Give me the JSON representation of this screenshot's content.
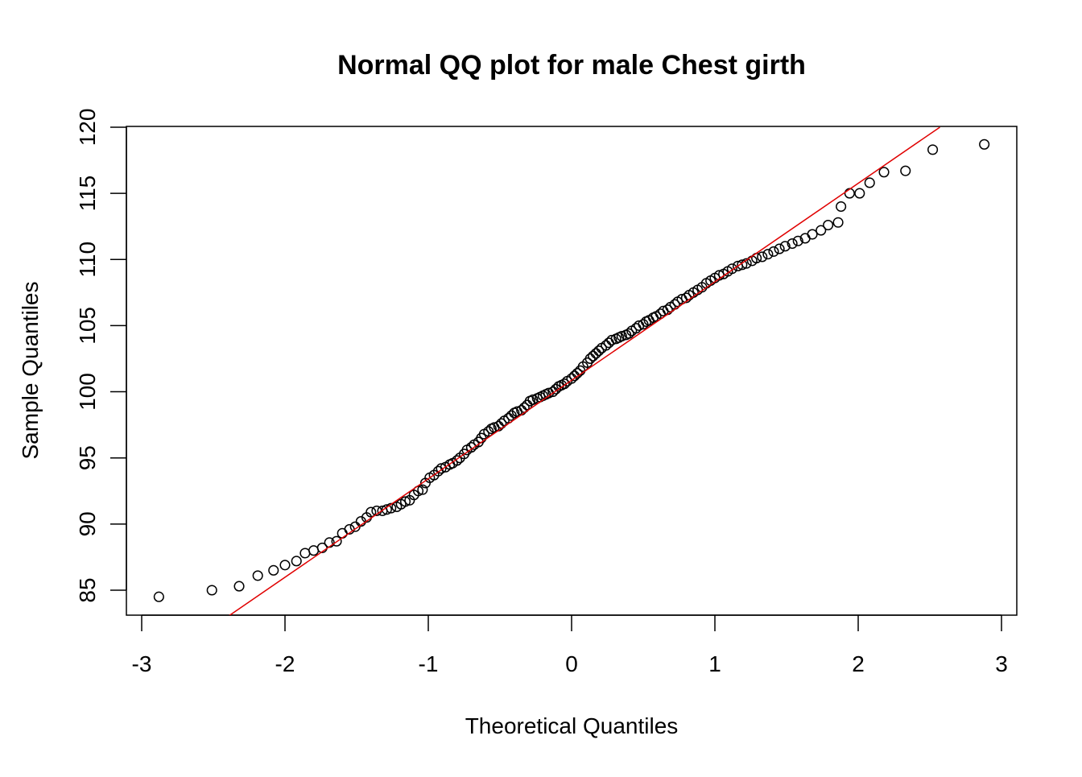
{
  "chart_data": {
    "type": "scatter",
    "title": "Normal QQ plot for male Chest girth",
    "xlabel": "Theoretical Quantiles",
    "ylabel": "Sample Quantiles",
    "xlim": [
      -3,
      3
    ],
    "ylim": [
      83,
      120
    ],
    "x_ticks": [
      "-3",
      "-2",
      "-1",
      "0",
      "1",
      "2",
      "3"
    ],
    "y_ticks": [
      "85",
      "90",
      "95",
      "100",
      "105",
      "110",
      "115",
      "120"
    ],
    "grid": false,
    "marker": "open-circle",
    "colors": {
      "points": "#000000",
      "reference_line": "#e00000"
    },
    "reference_line": {
      "points": [
        [
          -2.4,
          83.0
        ],
        [
          2.57,
          120.0
        ]
      ]
    },
    "points": [
      [
        -2.88,
        84.5
      ],
      [
        -2.51,
        85.0
      ],
      [
        -2.32,
        85.3
      ],
      [
        -2.19,
        86.1
      ],
      [
        -2.08,
        86.5
      ],
      [
        -2.0,
        86.9
      ],
      [
        -1.92,
        87.2
      ],
      [
        -1.86,
        87.8
      ],
      [
        -1.8,
        88.0
      ],
      [
        -1.74,
        88.2
      ],
      [
        -1.69,
        88.6
      ],
      [
        -1.64,
        88.7
      ],
      [
        -1.6,
        89.3
      ],
      [
        -1.55,
        89.6
      ],
      [
        -1.51,
        89.8
      ],
      [
        -1.47,
        90.2
      ],
      [
        -1.43,
        90.5
      ],
      [
        -1.4,
        90.9
      ],
      [
        -1.36,
        91.0
      ],
      [
        -1.32,
        91.0
      ],
      [
        -1.29,
        91.1
      ],
      [
        -1.26,
        91.2
      ],
      [
        -1.22,
        91.3
      ],
      [
        -1.19,
        91.5
      ],
      [
        -1.16,
        91.7
      ],
      [
        -1.13,
        91.8
      ],
      [
        -1.1,
        92.2
      ],
      [
        -1.07,
        92.5
      ],
      [
        -1.04,
        92.6
      ],
      [
        -1.02,
        93.1
      ],
      [
        -0.99,
        93.5
      ],
      [
        -0.96,
        93.7
      ],
      [
        -0.93,
        94.0
      ],
      [
        -0.91,
        94.2
      ],
      [
        -0.88,
        94.3
      ],
      [
        -0.85,
        94.5
      ],
      [
        -0.83,
        94.6
      ],
      [
        -0.8,
        94.8
      ],
      [
        -0.78,
        95.0
      ],
      [
        -0.75,
        95.3
      ],
      [
        -0.73,
        95.6
      ],
      [
        -0.7,
        95.8
      ],
      [
        -0.68,
        96.0
      ],
      [
        -0.65,
        96.2
      ],
      [
        -0.63,
        96.5
      ],
      [
        -0.61,
        96.8
      ],
      [
        -0.58,
        97.0
      ],
      [
        -0.56,
        97.2
      ],
      [
        -0.54,
        97.3
      ],
      [
        -0.51,
        97.4
      ],
      [
        -0.49,
        97.6
      ],
      [
        -0.47,
        97.8
      ],
      [
        -0.44,
        98.0
      ],
      [
        -0.42,
        98.2
      ],
      [
        -0.4,
        98.4
      ],
      [
        -0.38,
        98.5
      ],
      [
        -0.35,
        98.6
      ],
      [
        -0.33,
        98.8
      ],
      [
        -0.31,
        99.0
      ],
      [
        -0.29,
        99.3
      ],
      [
        -0.27,
        99.4
      ],
      [
        -0.24,
        99.5
      ],
      [
        -0.22,
        99.6
      ],
      [
        -0.2,
        99.7
      ],
      [
        -0.18,
        99.8
      ],
      [
        -0.16,
        99.9
      ],
      [
        -0.13,
        100.0
      ],
      [
        -0.11,
        100.2
      ],
      [
        -0.09,
        100.4
      ],
      [
        -0.07,
        100.5
      ],
      [
        -0.05,
        100.6
      ],
      [
        -0.03,
        100.8
      ],
      [
        0.0,
        101.0
      ],
      [
        0.02,
        101.2
      ],
      [
        0.04,
        101.4
      ],
      [
        0.06,
        101.6
      ],
      [
        0.08,
        101.9
      ],
      [
        0.11,
        102.2
      ],
      [
        0.13,
        102.5
      ],
      [
        0.15,
        102.7
      ],
      [
        0.17,
        102.9
      ],
      [
        0.19,
        103.1
      ],
      [
        0.21,
        103.3
      ],
      [
        0.24,
        103.5
      ],
      [
        0.26,
        103.7
      ],
      [
        0.28,
        103.9
      ],
      [
        0.31,
        104.0
      ],
      [
        0.33,
        104.1
      ],
      [
        0.35,
        104.2
      ],
      [
        0.38,
        104.3
      ],
      [
        0.4,
        104.4
      ],
      [
        0.42,
        104.6
      ],
      [
        0.45,
        104.8
      ],
      [
        0.47,
        105.0
      ],
      [
        0.5,
        105.1
      ],
      [
        0.52,
        105.3
      ],
      [
        0.54,
        105.4
      ],
      [
        0.57,
        105.6
      ],
      [
        0.59,
        105.7
      ],
      [
        0.62,
        105.9
      ],
      [
        0.64,
        106.1
      ],
      [
        0.67,
        106.2
      ],
      [
        0.69,
        106.4
      ],
      [
        0.72,
        106.6
      ],
      [
        0.74,
        106.8
      ],
      [
        0.77,
        107.0
      ],
      [
        0.8,
        107.1
      ],
      [
        0.82,
        107.3
      ],
      [
        0.85,
        107.5
      ],
      [
        0.88,
        107.7
      ],
      [
        0.91,
        107.9
      ],
      [
        0.94,
        108.2
      ],
      [
        0.97,
        108.4
      ],
      [
        1.0,
        108.6
      ],
      [
        1.03,
        108.8
      ],
      [
        1.06,
        108.9
      ],
      [
        1.09,
        109.1
      ],
      [
        1.12,
        109.3
      ],
      [
        1.16,
        109.5
      ],
      [
        1.19,
        109.6
      ],
      [
        1.22,
        109.7
      ],
      [
        1.26,
        109.9
      ],
      [
        1.29,
        110.1
      ],
      [
        1.33,
        110.2
      ],
      [
        1.37,
        110.4
      ],
      [
        1.41,
        110.6
      ],
      [
        1.45,
        110.8
      ],
      [
        1.49,
        111.0
      ],
      [
        1.54,
        111.2
      ],
      [
        1.58,
        111.4
      ],
      [
        1.63,
        111.6
      ],
      [
        1.68,
        111.9
      ],
      [
        1.74,
        112.2
      ],
      [
        1.79,
        112.6
      ],
      [
        1.86,
        112.8
      ],
      [
        1.88,
        114.0
      ],
      [
        1.94,
        115.0
      ],
      [
        2.01,
        115.0
      ],
      [
        2.08,
        115.8
      ],
      [
        2.18,
        116.6
      ],
      [
        2.33,
        116.7
      ],
      [
        2.52,
        118.3
      ],
      [
        2.88,
        118.7
      ]
    ]
  }
}
